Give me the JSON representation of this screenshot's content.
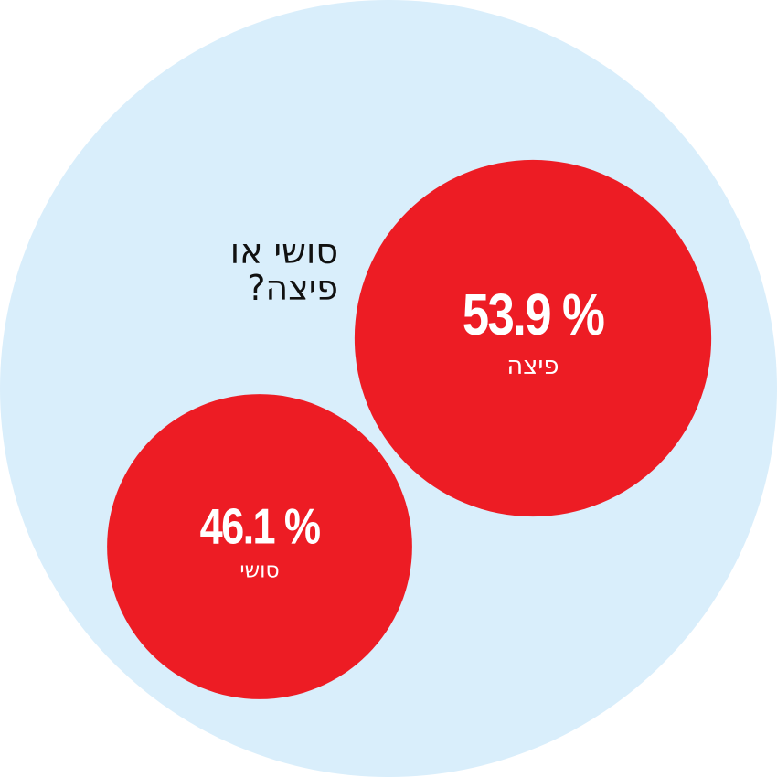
{
  "chart_data": {
    "type": "bubble",
    "title": "סושי או\nפיצה?",
    "categories": [
      "פיצה",
      "סושי"
    ],
    "values": [
      53.9,
      46.1
    ],
    "value_labels": [
      "53.9 %",
      "46.1 %"
    ],
    "color": "#ed1c24",
    "background_color": "#d9eefb"
  }
}
